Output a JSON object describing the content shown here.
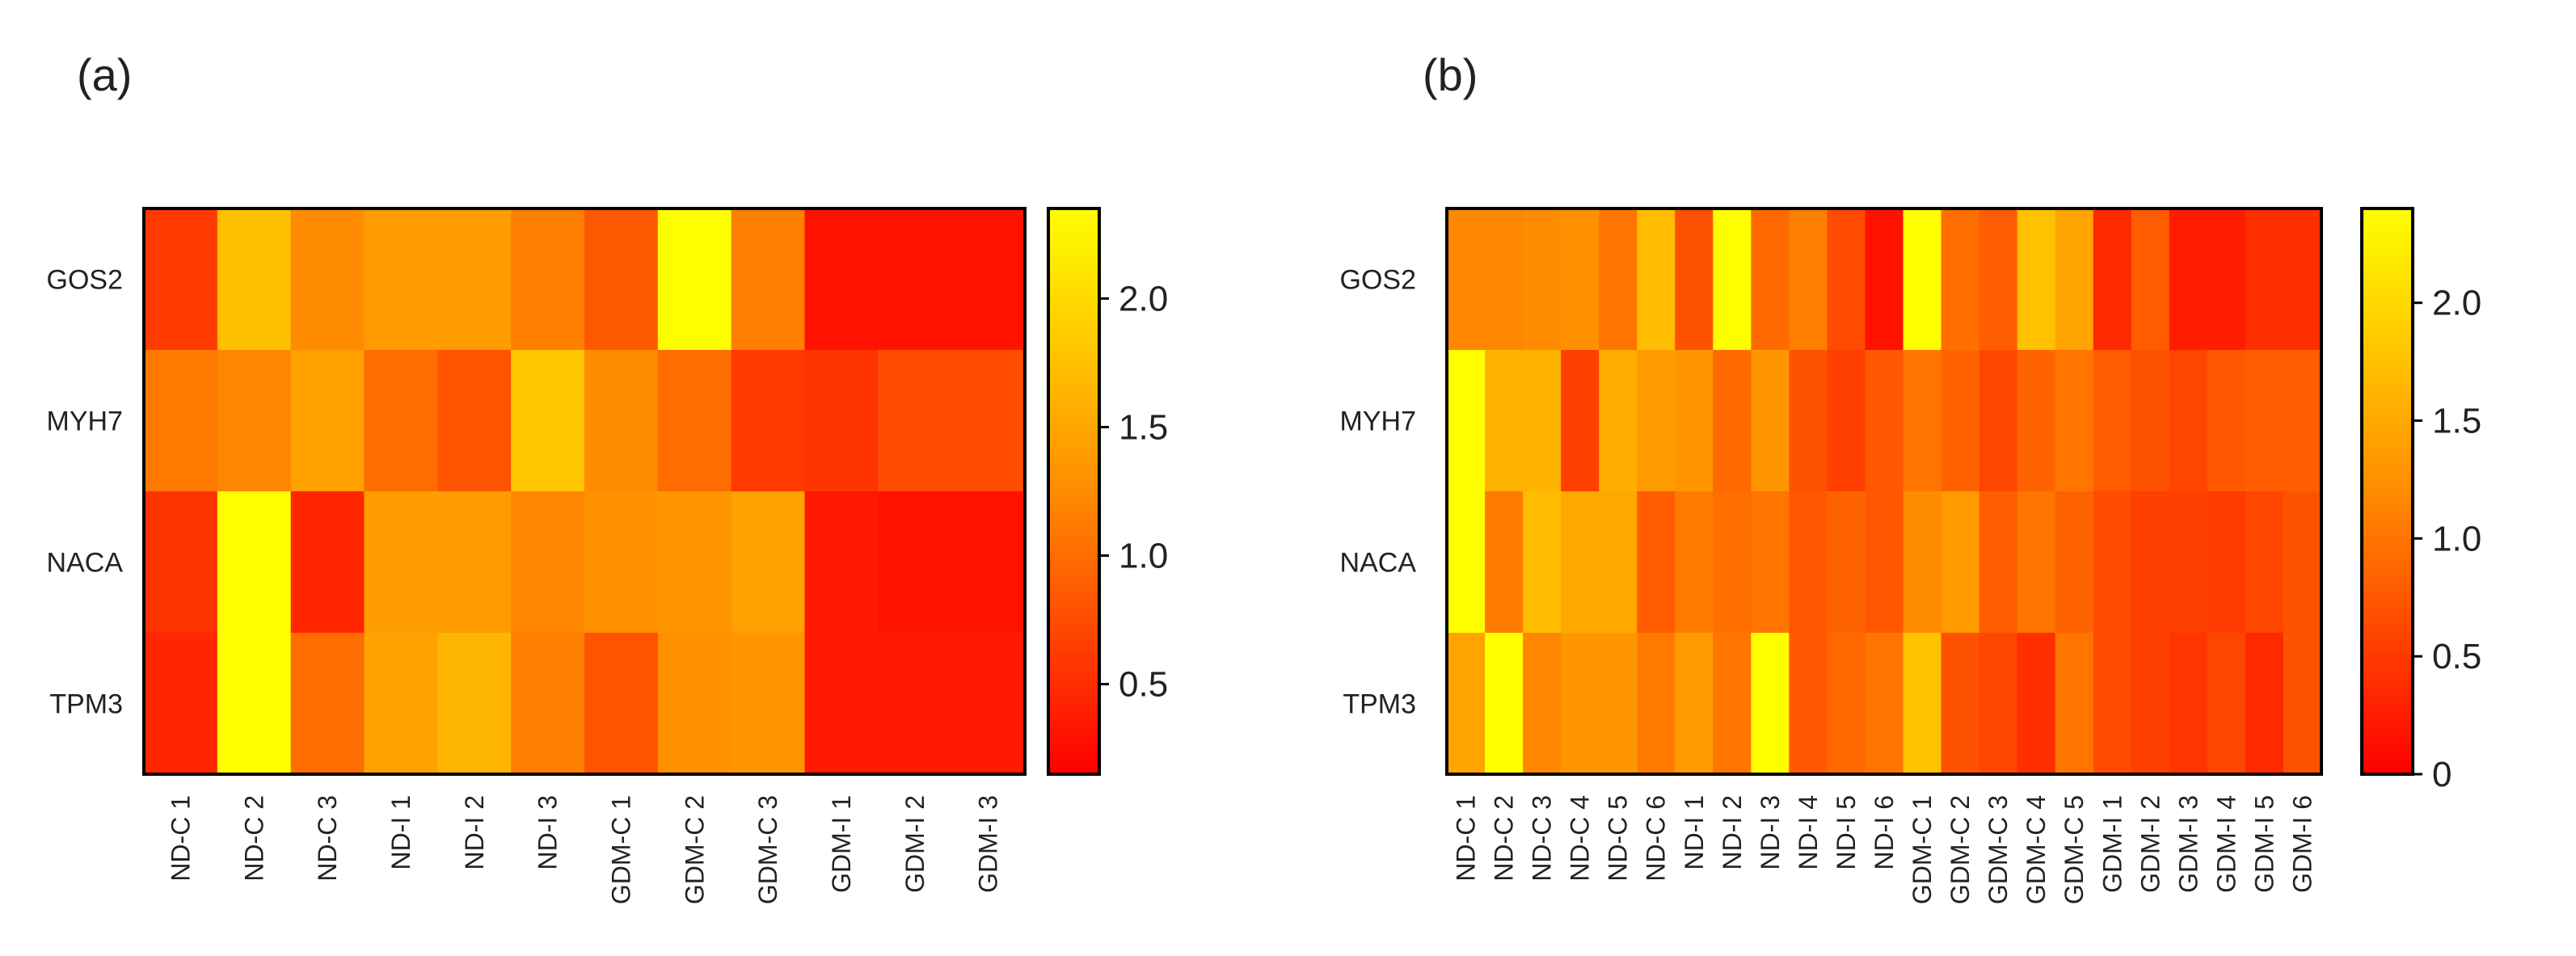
{
  "chart_data": [
    {
      "panel_label": "(a)",
      "type": "heatmap",
      "rows": [
        "GOS2",
        "MYH7",
        "NACA",
        "TPM3"
      ],
      "columns": [
        "ND-C 1",
        "ND-C 2",
        "ND-C 3",
        "ND-I 1",
        "ND-I 2",
        "ND-I 3",
        "GDM-C 1",
        "GDM-C 2",
        "GDM-C 3",
        "GDM-I 1",
        "GDM-I 2",
        "GDM-I 3"
      ],
      "values": [
        [
          0.6,
          1.75,
          1.25,
          1.4,
          1.4,
          1.15,
          0.85,
          2.35,
          1.15,
          0.3,
          0.3,
          0.3
        ],
        [
          1.1,
          1.2,
          1.45,
          1.0,
          0.8,
          1.8,
          1.25,
          1.0,
          0.6,
          0.55,
          0.75,
          0.75
        ],
        [
          0.55,
          2.35,
          0.45,
          1.4,
          1.4,
          1.2,
          1.3,
          1.35,
          1.45,
          0.35,
          0.3,
          0.3
        ],
        [
          0.45,
          2.35,
          1.0,
          1.45,
          1.65,
          1.15,
          0.8,
          1.3,
          1.35,
          0.35,
          0.35,
          0.35
        ]
      ],
      "colorbar": {
        "min": 0.15,
        "max": 2.35,
        "ticks": [
          "0.5",
          "1.0",
          "1.5",
          "2.0"
        ],
        "tick_values": [
          0.5,
          1.0,
          1.5,
          2.0
        ]
      },
      "colormap": [
        "#ff0000",
        "#ff8c00",
        "#ffff00"
      ]
    },
    {
      "panel_label": "(b)",
      "type": "heatmap",
      "rows": [
        "GOS2",
        "MYH7",
        "NACA",
        "TPM3"
      ],
      "columns": [
        "ND-C 1",
        "ND-C 2",
        "ND-C 3",
        "ND-C 4",
        "ND-C 5",
        "ND-C 6",
        "ND-I 1",
        "ND-I 2",
        "ND-I 3",
        "ND-I 4",
        "ND-I 5",
        "ND-I 6",
        "GDM-C 1",
        "GDM-C 2",
        "GDM-C 3",
        "GDM-C 4",
        "GDM-C 5",
        "GDM-I 1",
        "GDM-I 2",
        "GDM-I 3",
        "GDM-I 4",
        "GDM-I 5",
        "GDM-I 6"
      ],
      "values": [
        [
          1.15,
          1.15,
          1.2,
          1.25,
          1.0,
          1.7,
          0.7,
          2.4,
          0.9,
          1.1,
          0.65,
          0.15,
          2.4,
          0.95,
          0.8,
          1.75,
          1.45,
          0.35,
          0.8,
          0.25,
          0.25,
          0.4,
          0.4
        ],
        [
          2.4,
          1.6,
          1.6,
          0.55,
          1.55,
          1.35,
          1.3,
          0.9,
          1.3,
          0.7,
          0.55,
          0.75,
          1.0,
          0.85,
          0.6,
          0.85,
          1.0,
          0.8,
          0.7,
          0.6,
          0.75,
          0.8,
          0.8
        ],
        [
          2.4,
          1.05,
          1.7,
          1.5,
          1.5,
          0.8,
          1.05,
          0.95,
          1.0,
          0.75,
          0.85,
          0.75,
          1.2,
          1.35,
          0.8,
          1.0,
          0.85,
          0.65,
          0.55,
          0.55,
          0.5,
          0.6,
          0.7
        ],
        [
          1.45,
          2.4,
          1.15,
          1.3,
          1.3,
          1.05,
          1.35,
          1.0,
          2.4,
          0.75,
          0.9,
          1.0,
          1.75,
          0.7,
          0.6,
          0.4,
          1.0,
          0.65,
          0.55,
          0.45,
          0.6,
          0.35,
          0.7
        ]
      ],
      "colorbar": {
        "min": 0.0,
        "max": 2.4,
        "ticks": [
          "0",
          "0.5",
          "1.0",
          "1.5",
          "2.0"
        ],
        "tick_values": [
          0,
          0.5,
          1.0,
          1.5,
          2.0
        ]
      },
      "colormap": [
        "#ff0000",
        "#ff8c00",
        "#ffff00"
      ]
    }
  ]
}
